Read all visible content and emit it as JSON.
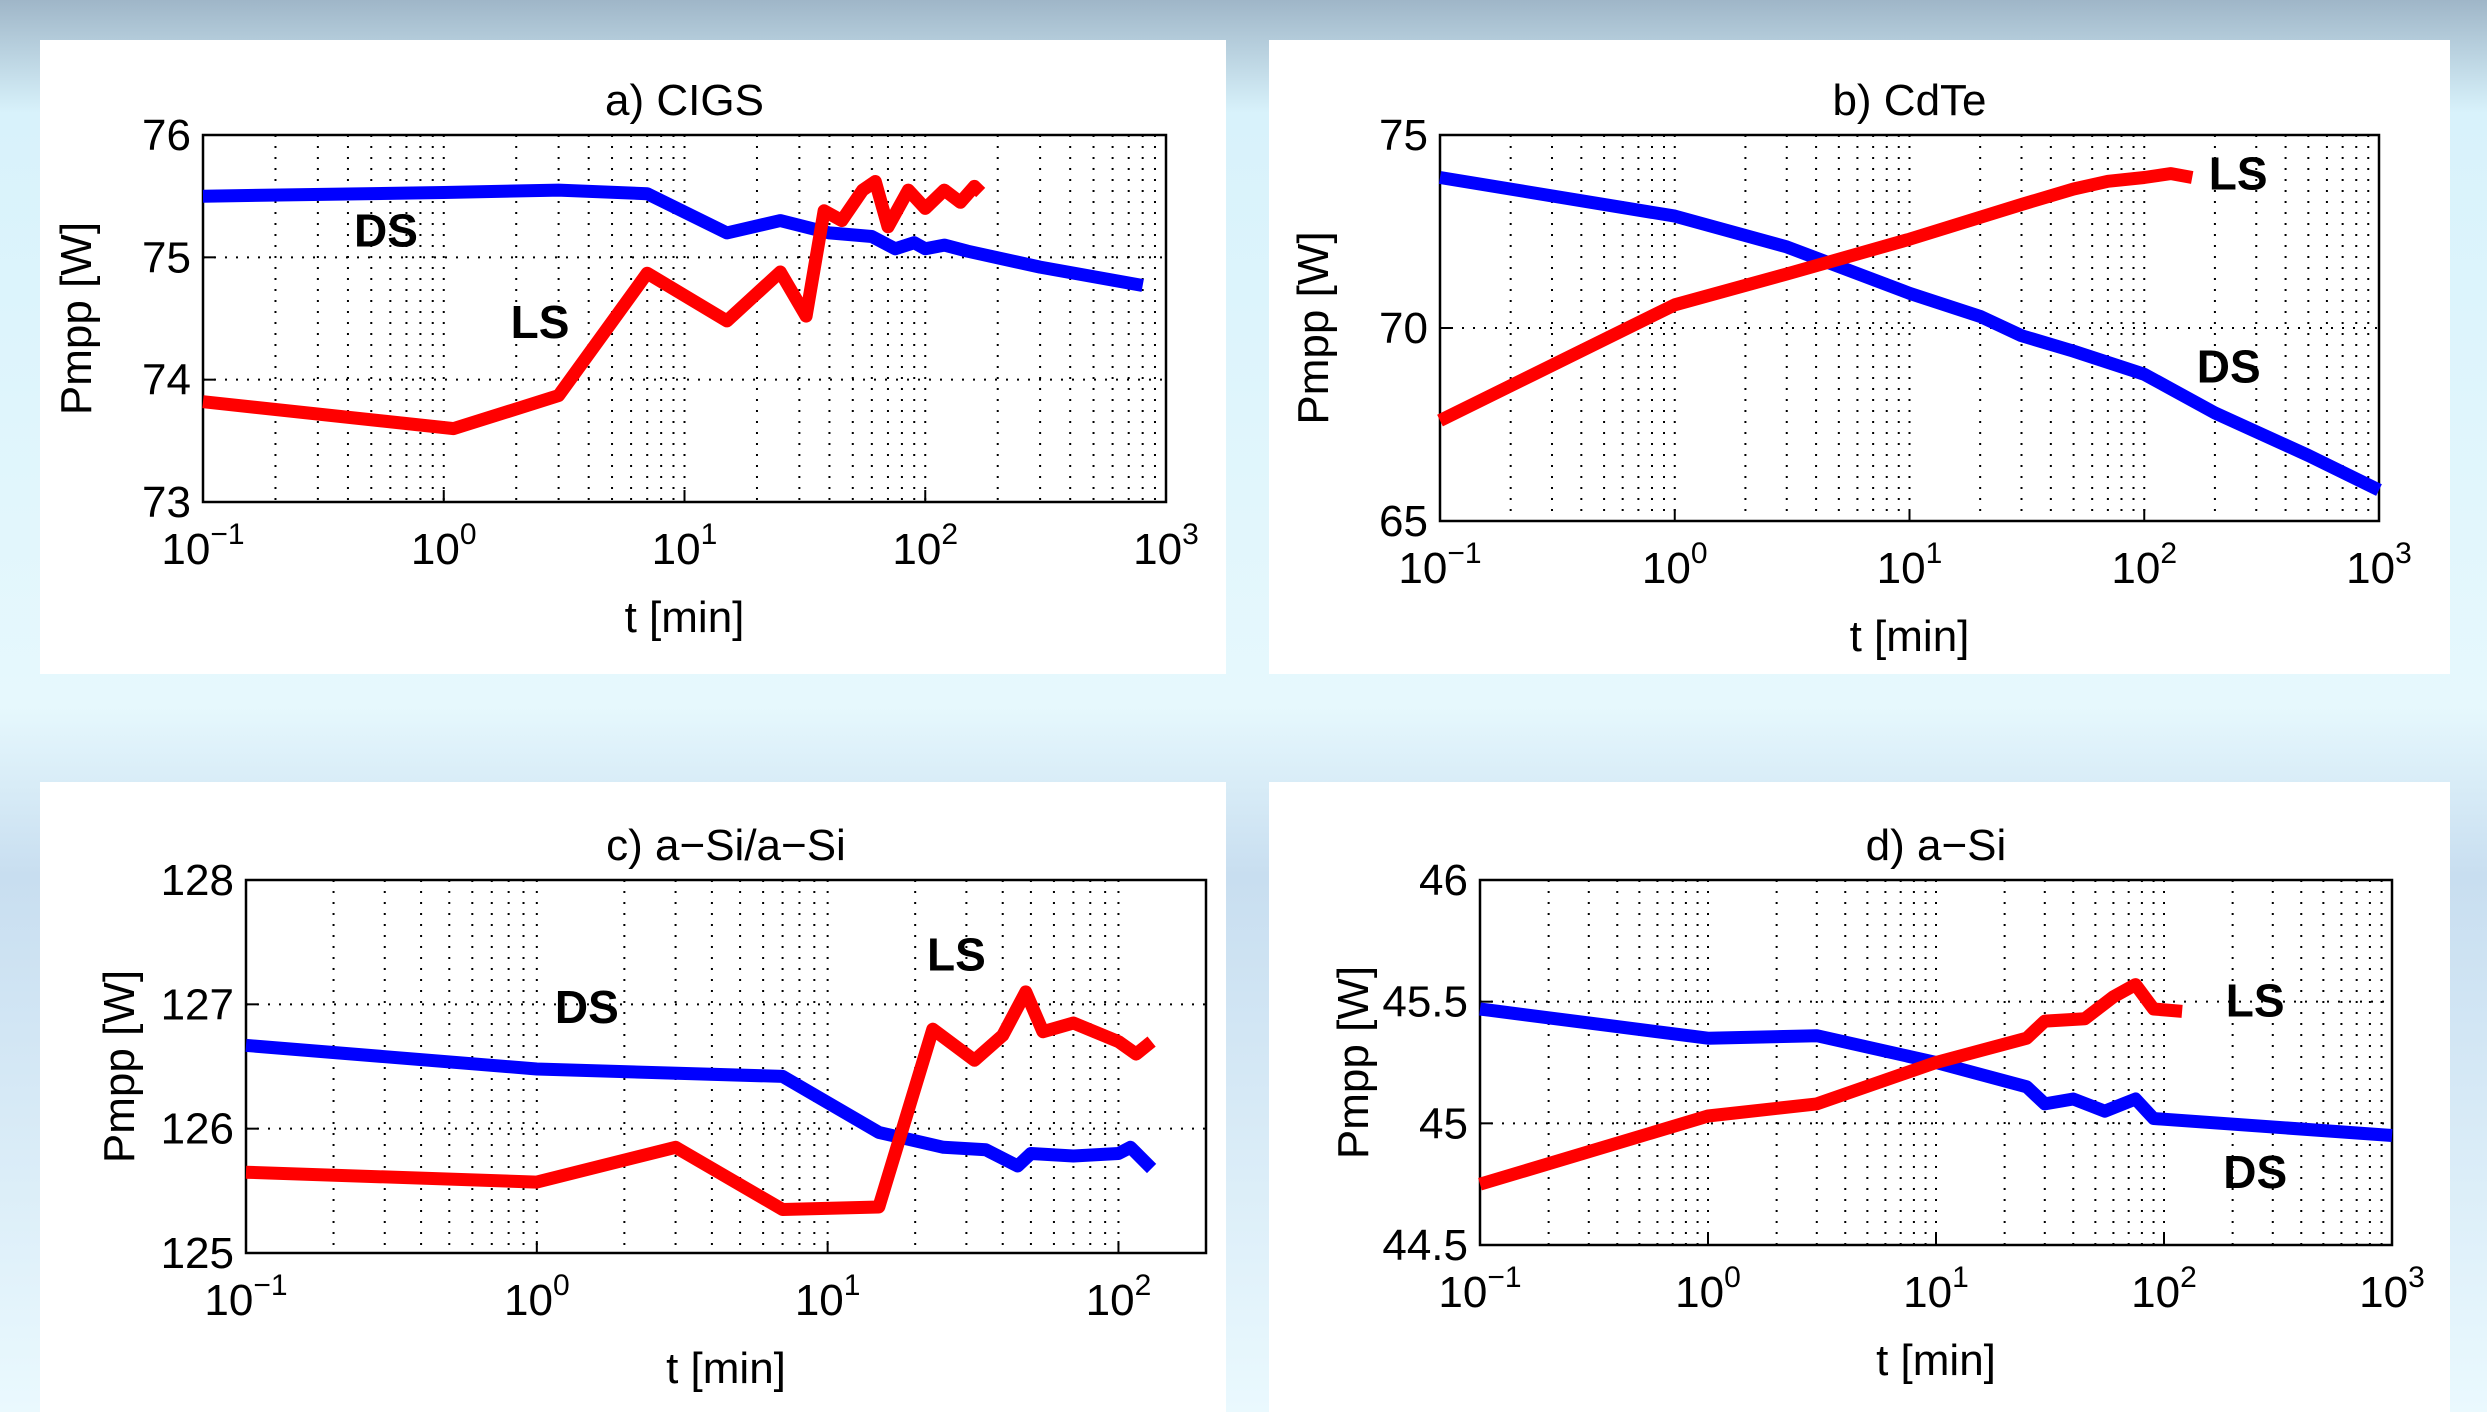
{
  "chart_data": [
    {
      "type": "line",
      "title": "a) CIGS",
      "xlabel": "t [min]",
      "ylabel": "Pmpp [W]",
      "xscale": "log",
      "grid": true,
      "xlim": [
        0.1,
        1000
      ],
      "xticks": [
        {
          "value": 0.1,
          "label": "10−1"
        },
        {
          "value": 1,
          "label": "100"
        },
        {
          "value": 10,
          "label": "101"
        },
        {
          "value": 100,
          "label": "102"
        },
        {
          "value": 1000,
          "label": "103"
        }
      ],
      "ylim": [
        73,
        76
      ],
      "yticks": [
        73,
        74,
        75,
        76
      ],
      "annotations": [
        "DS",
        "LS"
      ],
      "series": [
        {
          "name": "DS",
          "color": "#0000ff",
          "x": [
            0.1,
            1,
            3,
            7,
            15,
            25,
            40,
            60,
            75,
            90,
            100,
            120,
            150,
            300,
            800
          ],
          "values": [
            75.5,
            75.53,
            75.55,
            75.52,
            75.2,
            75.3,
            75.2,
            75.17,
            75.07,
            75.12,
            75.07,
            75.1,
            75.05,
            74.92,
            74.77
          ]
        },
        {
          "name": "LS",
          "color": "#ff0000",
          "x": [
            0.1,
            1.1,
            3,
            7,
            15,
            25,
            32,
            38,
            45,
            55,
            62,
            70,
            85,
            100,
            120,
            140,
            160,
            170
          ],
          "values": [
            73.82,
            73.6,
            73.87,
            74.87,
            74.48,
            74.88,
            74.52,
            75.38,
            75.3,
            75.55,
            75.62,
            75.25,
            75.55,
            75.4,
            75.55,
            75.45,
            75.58,
            75.53
          ]
        }
      ]
    },
    {
      "type": "line",
      "title": "b) CdTe",
      "xlabel": "t [min]",
      "ylabel": "Pmpp [W]",
      "xscale": "log",
      "grid": true,
      "xlim": [
        0.1,
        1000
      ],
      "xticks": [
        {
          "value": 0.1,
          "label": "10−1"
        },
        {
          "value": 1,
          "label": "100"
        },
        {
          "value": 10,
          "label": "101"
        },
        {
          "value": 100,
          "label": "102"
        },
        {
          "value": 1000,
          "label": "103"
        }
      ],
      "ylim": [
        65,
        75
      ],
      "yticks": [
        65,
        70,
        75
      ],
      "annotations": [
        "LS",
        "DS"
      ],
      "series": [
        {
          "name": "DS",
          "color": "#0000ff",
          "x": [
            0.1,
            1,
            3,
            10,
            20,
            30,
            50,
            100,
            200,
            500,
            1000
          ],
          "values": [
            73.9,
            72.9,
            72.1,
            70.9,
            70.3,
            69.8,
            69.4,
            68.8,
            67.8,
            66.7,
            65.8
          ]
        },
        {
          "name": "LS",
          "color": "#ff0000",
          "x": [
            0.1,
            1,
            3,
            10,
            30,
            50,
            70,
            100,
            130,
            160
          ],
          "values": [
            67.6,
            70.6,
            71.4,
            72.3,
            73.2,
            73.6,
            73.8,
            73.9,
            74.0,
            73.9
          ]
        }
      ]
    },
    {
      "type": "line",
      "title": "c) a−Si/a−Si",
      "xlabel": "t [min]",
      "ylabel": "Pmpp [W]",
      "xscale": "log",
      "grid": true,
      "xlim": [
        0.1,
        200
      ],
      "xticks": [
        {
          "value": 0.1,
          "label": "10−1"
        },
        {
          "value": 1,
          "label": "100"
        },
        {
          "value": 10,
          "label": "101"
        },
        {
          "value": 100,
          "label": "102"
        }
      ],
      "ylim": [
        125,
        128
      ],
      "yticks": [
        125,
        126,
        127,
        128
      ],
      "annotations": [
        "LS",
        "DS"
      ],
      "series": [
        {
          "name": "DS",
          "color": "#0000ff",
          "x": [
            0.1,
            1,
            7,
            15,
            25,
            35,
            45,
            50,
            70,
            100,
            110,
            130
          ],
          "values": [
            126.67,
            126.48,
            126.42,
            125.97,
            125.85,
            125.83,
            125.7,
            125.8,
            125.78,
            125.8,
            125.85,
            125.68
          ]
        },
        {
          "name": "LS",
          "color": "#ff0000",
          "x": [
            0.1,
            1,
            3,
            7,
            15,
            23,
            32,
            40,
            48,
            55,
            70,
            100,
            115,
            130
          ],
          "values": [
            125.65,
            125.57,
            125.85,
            125.35,
            125.37,
            126.8,
            126.55,
            126.75,
            127.1,
            126.78,
            126.85,
            126.7,
            126.6,
            126.7
          ]
        }
      ]
    },
    {
      "type": "line",
      "title": "d) a−Si",
      "xlabel": "t [min]",
      "ylabel": "Pmpp [W]",
      "xscale": "log",
      "grid": true,
      "xlim": [
        0.1,
        1000
      ],
      "xticks": [
        {
          "value": 0.1,
          "label": "10−1"
        },
        {
          "value": 1,
          "label": "100"
        },
        {
          "value": 10,
          "label": "101"
        },
        {
          "value": 100,
          "label": "102"
        },
        {
          "value": 1000,
          "label": "103"
        }
      ],
      "ylim": [
        44.5,
        46
      ],
      "yticks": [
        44.5,
        45,
        45.5,
        46
      ],
      "annotations": [
        "LS",
        "DS"
      ],
      "series": [
        {
          "name": "DS",
          "color": "#0000ff",
          "x": [
            0.1,
            1,
            3,
            10,
            25,
            30,
            40,
            55,
            75,
            90,
            1000
          ],
          "values": [
            45.47,
            45.35,
            45.36,
            45.25,
            45.15,
            45.08,
            45.1,
            45.05,
            45.1,
            45.02,
            44.95
          ]
        },
        {
          "name": "LS",
          "color": "#ff0000",
          "x": [
            0.1,
            1,
            3,
            10,
            25,
            30,
            45,
            60,
            75,
            90,
            120
          ],
          "values": [
            44.75,
            45.03,
            45.08,
            45.25,
            45.35,
            45.42,
            45.43,
            45.52,
            45.57,
            45.47,
            45.46
          ]
        }
      ]
    }
  ]
}
